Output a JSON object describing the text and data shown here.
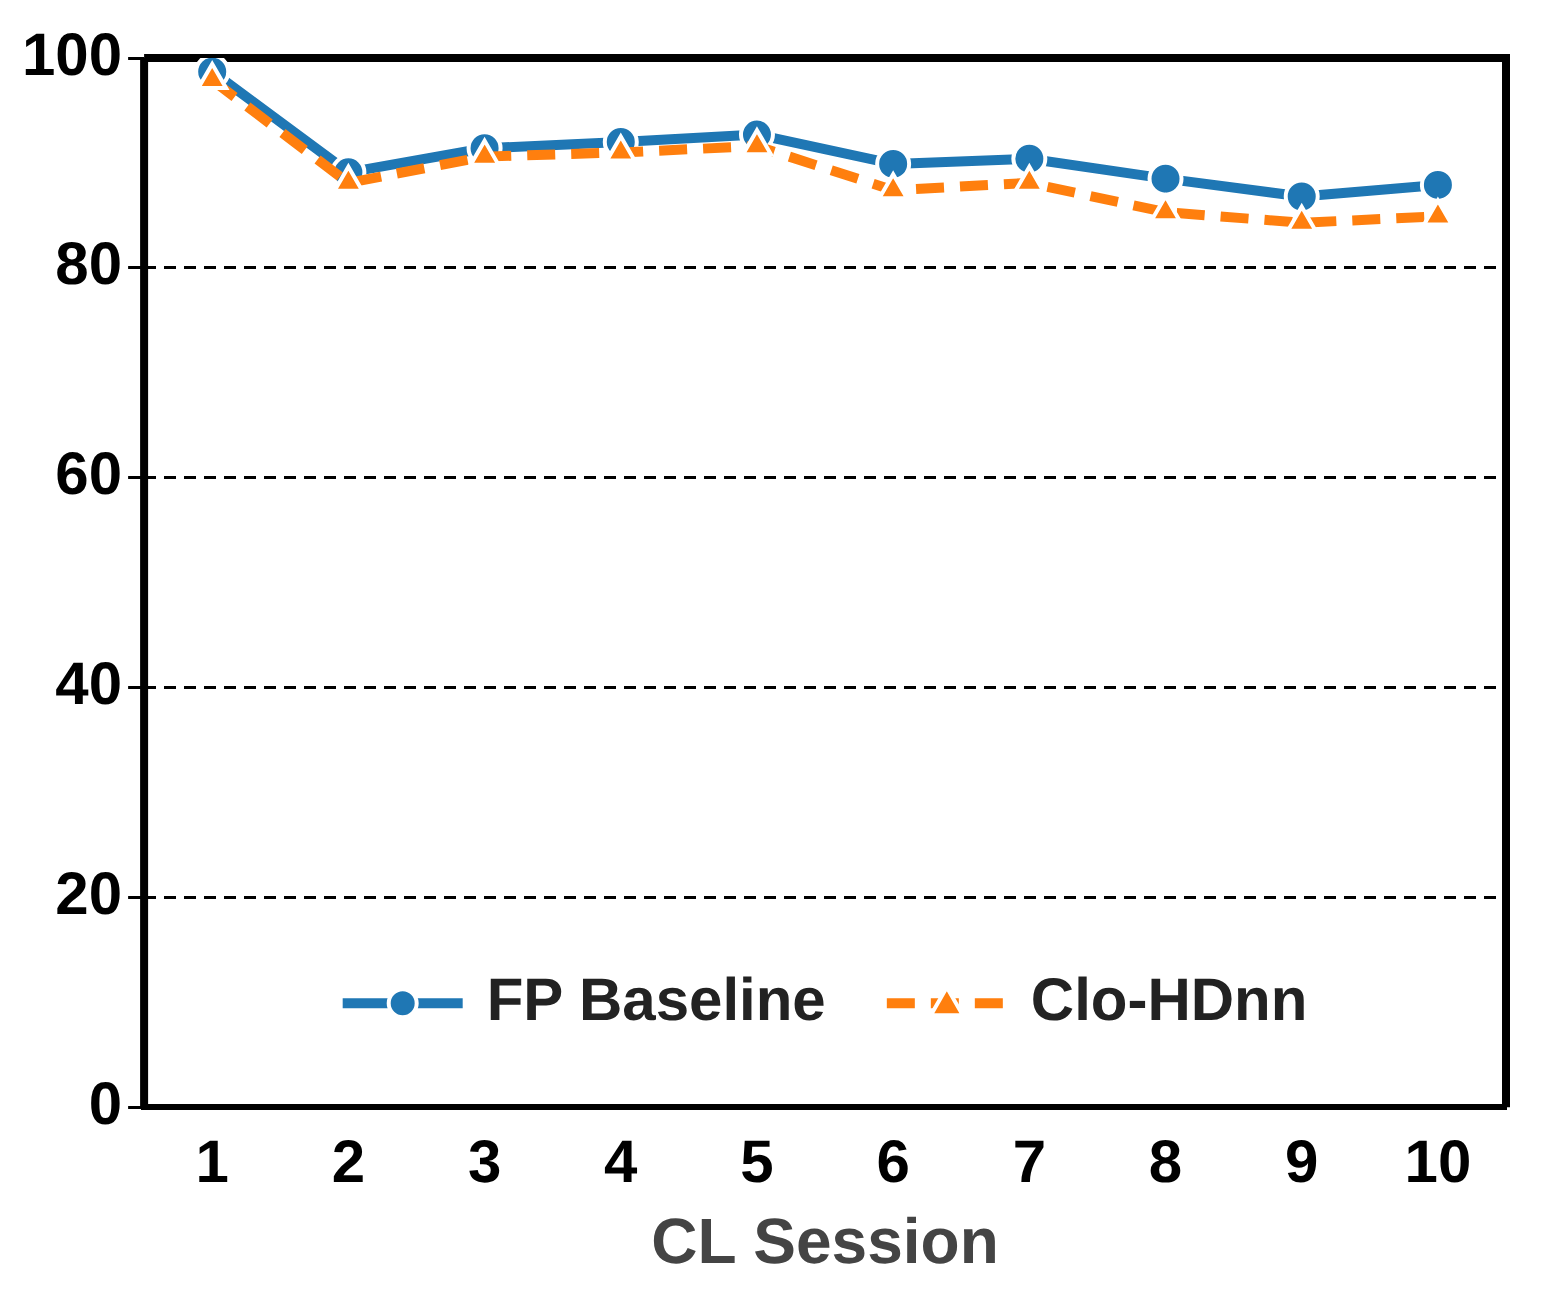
{
  "chart_data": {
    "type": "line",
    "xlabel": "CL Session",
    "categories": [
      "1",
      "2",
      "3",
      "4",
      "5",
      "6",
      "7",
      "8",
      "9",
      "10"
    ],
    "series": [
      {
        "name": "FP Baseline",
        "color": "#1f77b4",
        "values": [
          98.7,
          89.1,
          91.4,
          92.0,
          92.7,
          89.9,
          90.4,
          88.5,
          86.8,
          87.9
        ],
        "marker": "circle",
        "line_style": "solid"
      },
      {
        "name": "Clo-HDnn",
        "color": "#ff7f0e",
        "values": [
          97.9,
          88.1,
          90.6,
          91.0,
          91.6,
          87.4,
          88.1,
          85.3,
          84.3,
          84.9
        ],
        "marker": "triangle",
        "line_style": "dashed"
      }
    ],
    "ylim": [
      0,
      100
    ],
    "yticks": [
      0,
      20,
      40,
      60,
      80,
      100
    ],
    "grid": "y",
    "legend": "bottom"
  }
}
